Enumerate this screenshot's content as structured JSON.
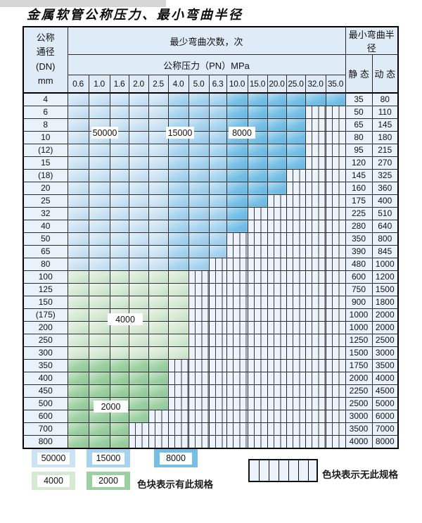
{
  "page": {
    "title": "金属软管公称压力、最小弯曲半径"
  },
  "table": {
    "corner_header": {
      "line1": "公称",
      "line2": "通径",
      "line3": "(DN)",
      "line4": "mm"
    },
    "bend_times_header": "最少弯曲次数，次",
    "pressure_header": "公称压力（PN）MPa",
    "radius_header": "最小弯曲半径",
    "static_header": "静 态",
    "dynamic_header": "动 态",
    "pressure_columns": [
      "0.6",
      "1.0",
      "1.6",
      "2.0",
      "2.5",
      "4.0",
      "5.0",
      "6.3",
      "10.0",
      "15.0",
      "20.0",
      "25.0",
      "32.0",
      "35.0"
    ],
    "rows": [
      {
        "dn": "4",
        "colored": 14,
        "palette": "blue",
        "static_r": "35",
        "dynamic_r": "80"
      },
      {
        "dn": "6",
        "colored": 12,
        "palette": "blue",
        "static_r": "50",
        "dynamic_r": "110"
      },
      {
        "dn": "8",
        "colored": 12,
        "palette": "blue",
        "static_r": "65",
        "dynamic_r": "145"
      },
      {
        "dn": "10",
        "colored": 12,
        "palette": "blue",
        "static_r": "80",
        "dynamic_r": "180"
      },
      {
        "dn": "(12)",
        "colored": 12,
        "palette": "blue",
        "static_r": "95",
        "dynamic_r": "215"
      },
      {
        "dn": "15",
        "colored": 12,
        "palette": "blue",
        "static_r": "120",
        "dynamic_r": "270"
      },
      {
        "dn": "(18)",
        "colored": 11,
        "palette": "blue",
        "static_r": "145",
        "dynamic_r": "325"
      },
      {
        "dn": "20",
        "colored": 11,
        "palette": "blue",
        "static_r": "160",
        "dynamic_r": "360"
      },
      {
        "dn": "25",
        "colored": 10,
        "palette": "blue",
        "static_r": "175",
        "dynamic_r": "400"
      },
      {
        "dn": "32",
        "colored": 9,
        "palette": "blue",
        "static_r": "225",
        "dynamic_r": "510"
      },
      {
        "dn": "40",
        "colored": 9,
        "palette": "blue",
        "static_r": "280",
        "dynamic_r": "640"
      },
      {
        "dn": "50",
        "colored": 8,
        "palette": "blue",
        "static_r": "350",
        "dynamic_r": "800"
      },
      {
        "dn": "65",
        "colored": 8,
        "palette": "blue",
        "static_r": "390",
        "dynamic_r": "845"
      },
      {
        "dn": "80",
        "colored": 7,
        "palette": "blue",
        "static_r": "480",
        "dynamic_r": "1000"
      },
      {
        "dn": "100",
        "colored": 6,
        "palette": "green_light",
        "static_r": "600",
        "dynamic_r": "1200"
      },
      {
        "dn": "125",
        "colored": 6,
        "palette": "green_light",
        "static_r": "750",
        "dynamic_r": "1500"
      },
      {
        "dn": "150",
        "colored": 6,
        "palette": "green_light",
        "static_r": "900",
        "dynamic_r": "1800"
      },
      {
        "dn": "(175)",
        "colored": 6,
        "palette": "green_light",
        "static_r": "1000",
        "dynamic_r": "2000"
      },
      {
        "dn": "200",
        "colored": 6,
        "palette": "green_light",
        "static_r": "1000",
        "dynamic_r": "2000"
      },
      {
        "dn": "250",
        "colored": 6,
        "palette": "green_light",
        "static_r": "1250",
        "dynamic_r": "2500"
      },
      {
        "dn": "300",
        "colored": 6,
        "palette": "green_light",
        "static_r": "1500",
        "dynamic_r": "3000"
      },
      {
        "dn": "350",
        "colored": 5,
        "palette": "green_dark",
        "static_r": "1750",
        "dynamic_r": "3500"
      },
      {
        "dn": "400",
        "colored": 5,
        "palette": "green_dark",
        "static_r": "2000",
        "dynamic_r": "4000"
      },
      {
        "dn": "450",
        "colored": 5,
        "palette": "green_dark",
        "static_r": "2250",
        "dynamic_r": "4500"
      },
      {
        "dn": "500",
        "colored": 5,
        "palette": "green_dark",
        "static_r": "2500",
        "dynamic_r": "5000"
      },
      {
        "dn": "600",
        "colored": 4,
        "palette": "green_dark",
        "static_r": "3000",
        "dynamic_r": "6000"
      },
      {
        "dn": "700",
        "colored": 3,
        "palette": "green_dark",
        "static_r": "3500",
        "dynamic_r": "7000"
      },
      {
        "dn": "800",
        "colored": 3,
        "palette": "green_dark",
        "static_r": "4000",
        "dynamic_r": "8000"
      }
    ]
  },
  "overlays": [
    {
      "label": "50000"
    },
    {
      "label": "15000"
    },
    {
      "label": "8000"
    },
    {
      "label": "4000"
    },
    {
      "label": "2000"
    }
  ],
  "legend": {
    "items": [
      {
        "label": "50000",
        "color_key": "blue_50000"
      },
      {
        "label": "15000",
        "color_key": "blue_15000"
      },
      {
        "label": "8000",
        "color_key": "blue_8000"
      },
      {
        "label": "4000",
        "color_key": "green_4000"
      },
      {
        "label": "2000",
        "color_key": "green_2000"
      }
    ],
    "has_spec_text": "色块表示有此规格",
    "no_spec_text": "色块表示无此规格"
  },
  "colors": {
    "blue_50000": "#cbe3f4",
    "blue_15000": "#a6d3ef",
    "blue_8000": "#75bfe6",
    "green_4000": "#d5e9d3",
    "green_2000": "#9bd0a0",
    "hatch_bg": "#edf3fa",
    "header_bg": "#dfecf7",
    "label_col_bg": "#e9f2fa"
  }
}
